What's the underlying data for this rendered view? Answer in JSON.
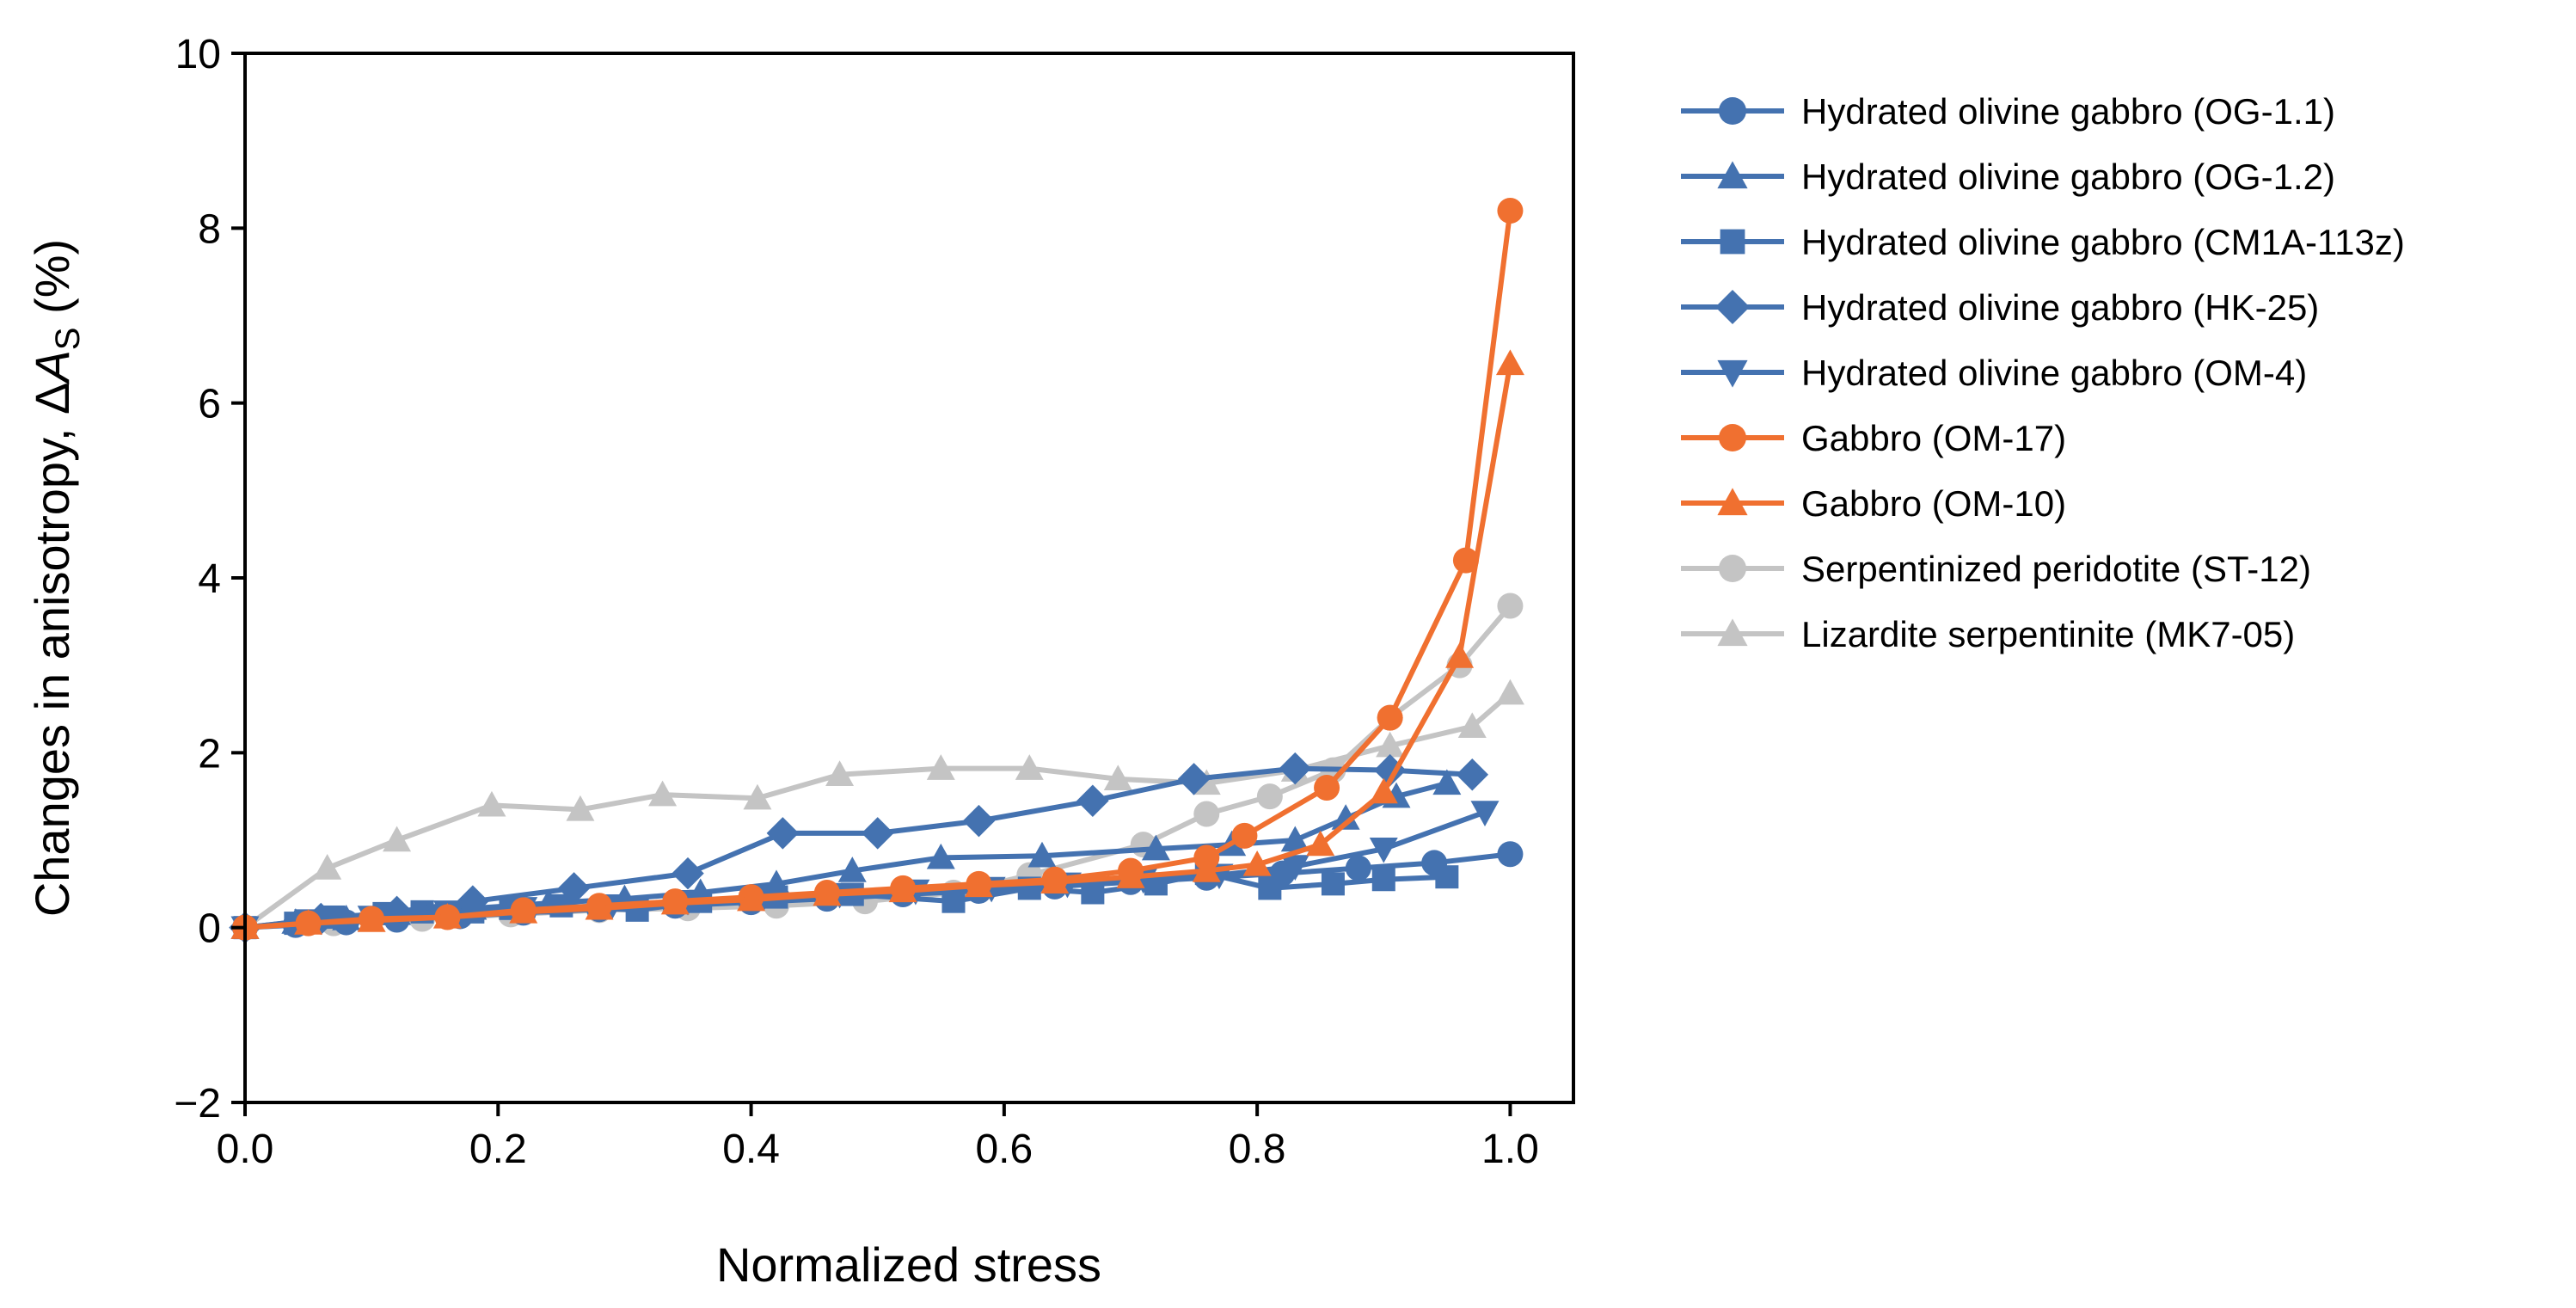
{
  "chart_data": {
    "type": "line",
    "title": "",
    "xlabel": "Normalized stress",
    "ylabel": {
      "prefix": "Changes in anisotropy, Δ",
      "symbol": "A",
      "subscript": "S",
      "suffix": " (%)"
    },
    "xlim": [
      0.0,
      1.05
    ],
    "ylim": [
      -2,
      10
    ],
    "xticks": [
      "0.0",
      "0.2",
      "0.4",
      "0.6",
      "0.8",
      "1.0"
    ],
    "yticks": [
      "−2",
      "0",
      "2",
      "4",
      "6",
      "8",
      "10"
    ],
    "grid": false,
    "legend_position": "outside-right",
    "colors": {
      "blue": "#4472b0",
      "orange": "#f07030",
      "gray": "#c4c4c4"
    },
    "series": [
      {
        "name": "Hydrated olivine gabbro (OG-1.1)",
        "color": "#4472b0",
        "marker": "circle",
        "x": [
          0,
          0.04,
          0.08,
          0.12,
          0.17,
          0.22,
          0.28,
          0.34,
          0.4,
          0.46,
          0.52,
          0.58,
          0.64,
          0.7,
          0.76,
          0.82,
          0.88,
          0.94,
          1.0
        ],
        "y": [
          0,
          0.03,
          0.06,
          0.09,
          0.13,
          0.17,
          0.21,
          0.25,
          0.29,
          0.33,
          0.38,
          0.42,
          0.47,
          0.52,
          0.57,
          0.62,
          0.68,
          0.74,
          0.84
        ]
      },
      {
        "name": "Hydrated olivine gabbro (OG-1.2)",
        "color": "#4472b0",
        "marker": "triangle-up",
        "x": [
          0,
          0.04,
          0.08,
          0.12,
          0.18,
          0.24,
          0.3,
          0.36,
          0.42,
          0.48,
          0.55,
          0.63,
          0.72,
          0.78,
          0.83,
          0.87,
          0.91,
          0.95
        ],
        "y": [
          0,
          0.06,
          0.1,
          0.16,
          0.22,
          0.28,
          0.33,
          0.4,
          0.5,
          0.65,
          0.8,
          0.82,
          0.9,
          0.95,
          1.0,
          1.25,
          1.5,
          1.65
        ]
      },
      {
        "name": "Hydrated olivine gabbro (CM1A-113z)",
        "color": "#4472b0",
        "marker": "square",
        "x": [
          0,
          0.04,
          0.07,
          0.11,
          0.14,
          0.18,
          0.21,
          0.25,
          0.31,
          0.36,
          0.42,
          0.48,
          0.56,
          0.62,
          0.67,
          0.72,
          0.76,
          0.81,
          0.86,
          0.9,
          0.95
        ],
        "y": [
          0,
          0.05,
          0.12,
          0.16,
          0.18,
          0.18,
          0.22,
          0.25,
          0.2,
          0.3,
          0.35,
          0.38,
          0.3,
          0.45,
          0.4,
          0.5,
          0.62,
          0.45,
          0.5,
          0.55,
          0.58
        ]
      },
      {
        "name": "Hydrated olivine gabbro (HK-25)",
        "color": "#4472b0",
        "marker": "diamond",
        "x": [
          0,
          0.06,
          0.12,
          0.18,
          0.26,
          0.35,
          0.425,
          0.5,
          0.58,
          0.67,
          0.75,
          0.83,
          0.905,
          0.97
        ],
        "y": [
          0,
          0.1,
          0.18,
          0.3,
          0.45,
          0.62,
          1.08,
          1.08,
          1.22,
          1.45,
          1.7,
          1.82,
          1.8,
          1.75
        ]
      },
      {
        "name": "Hydrated olivine gabbro (OM-4)",
        "color": "#4472b0",
        "marker": "triangle-down",
        "x": [
          0,
          0.05,
          0.1,
          0.16,
          0.22,
          0.29,
          0.35,
          0.41,
          0.47,
          0.53,
          0.59,
          0.65,
          0.71,
          0.77,
          0.83,
          0.9,
          0.98
        ],
        "y": [
          0,
          0.08,
          0.12,
          0.18,
          0.22,
          0.25,
          0.3,
          0.35,
          0.38,
          0.42,
          0.45,
          0.5,
          0.55,
          0.6,
          0.7,
          0.9,
          1.32
        ]
      },
      {
        "name": "Gabbro (OM-17)",
        "color": "#f07030",
        "marker": "circle",
        "x": [
          0,
          0.05,
          0.1,
          0.16,
          0.22,
          0.28,
          0.34,
          0.4,
          0.46,
          0.52,
          0.58,
          0.64,
          0.7,
          0.76,
          0.79,
          0.855,
          0.905,
          0.965,
          1.0
        ],
        "y": [
          0,
          0.05,
          0.1,
          0.12,
          0.2,
          0.25,
          0.3,
          0.35,
          0.4,
          0.45,
          0.5,
          0.55,
          0.65,
          0.8,
          1.05,
          1.6,
          2.4,
          4.2,
          8.2
        ]
      },
      {
        "name": "Gabbro (OM-10)",
        "color": "#f07030",
        "marker": "triangle-up",
        "x": [
          0,
          0.05,
          0.1,
          0.16,
          0.22,
          0.28,
          0.34,
          0.4,
          0.46,
          0.52,
          0.58,
          0.64,
          0.7,
          0.76,
          0.8,
          0.85,
          0.9,
          0.96,
          1.0
        ],
        "y": [
          0,
          0.05,
          0.08,
          0.12,
          0.18,
          0.22,
          0.28,
          0.32,
          0.38,
          0.42,
          0.48,
          0.52,
          0.58,
          0.65,
          0.72,
          0.95,
          1.55,
          3.1,
          6.45
        ]
      },
      {
        "name": "Serpentinized peridotite (ST-12)",
        "color": "#c4c4c4",
        "marker": "circle",
        "x": [
          0,
          0.07,
          0.14,
          0.21,
          0.28,
          0.35,
          0.42,
          0.49,
          0.56,
          0.62,
          0.71,
          0.76,
          0.81,
          0.86,
          0.905,
          0.96,
          1.0
        ],
        "y": [
          0,
          0.05,
          0.1,
          0.15,
          0.2,
          0.22,
          0.25,
          0.3,
          0.4,
          0.6,
          0.95,
          1.3,
          1.5,
          1.8,
          2.4,
          3.0,
          3.68
        ]
      },
      {
        "name": "Lizardite serpentinite (MK7-05)",
        "color": "#c4c4c4",
        "marker": "triangle-up",
        "x": [
          0,
          0.065,
          0.12,
          0.195,
          0.265,
          0.33,
          0.405,
          0.47,
          0.55,
          0.62,
          0.69,
          0.76,
          0.83,
          0.905,
          0.97,
          1.0
        ],
        "y": [
          0,
          0.68,
          1.0,
          1.4,
          1.35,
          1.52,
          1.48,
          1.75,
          1.82,
          1.82,
          1.7,
          1.65,
          1.8,
          2.08,
          2.3,
          2.68
        ]
      }
    ]
  }
}
